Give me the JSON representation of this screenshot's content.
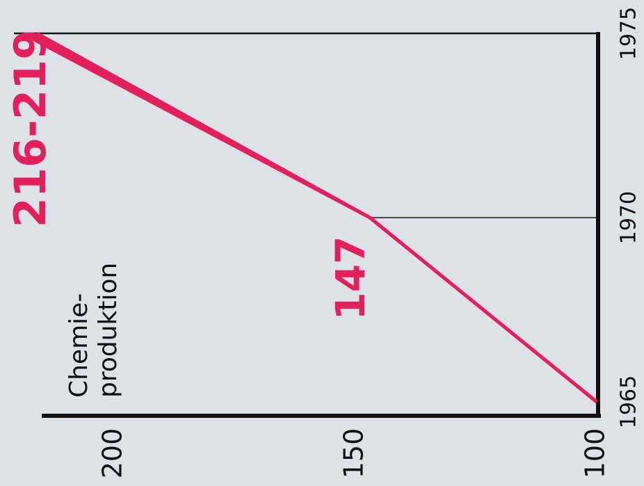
{
  "chart_data": {
    "type": "line",
    "y_label": [
      "Chemie-",
      "produktion"
    ],
    "x": [
      1965,
      1970,
      1975
    ],
    "series": [
      {
        "color": "#e2205c",
        "values": [
          100,
          147,
          216
        ]
      },
      {
        "color": "#e2205c",
        "values": [
          100,
          147,
          219
        ]
      }
    ],
    "annotations": [
      "147",
      "216-219"
    ],
    "xlim": [
      1965,
      1975
    ],
    "xticks": [
      1965,
      1970,
      1975
    ],
    "ylim": [
      100,
      215
    ],
    "yticks": [
      100,
      150,
      200
    ]
  }
}
